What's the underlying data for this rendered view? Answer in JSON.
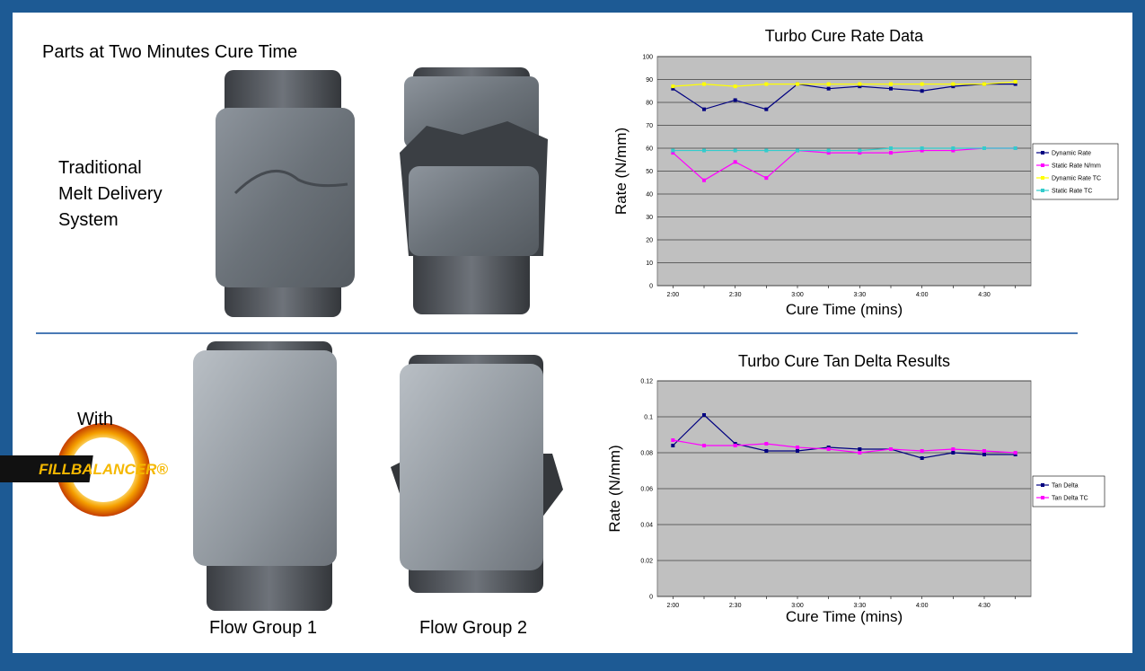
{
  "heading": "Parts at Two Minutes Cure Time",
  "traditional_label": [
    "Traditional",
    "Melt Delivery",
    "System"
  ],
  "with_label": "With",
  "logo": "FILLBALANCER®",
  "photo_captions": [
    "Flow Group 1",
    "Flow Group 2"
  ],
  "chart_data": [
    {
      "type": "line",
      "title": "Turbo Cure Rate Data",
      "x_label": "Cure Time (mins)",
      "y_label": "Rate (N/mm)",
      "categories": [
        "2:00",
        null,
        "2:30",
        null,
        "3:00",
        null,
        "3:30",
        null,
        "4:00",
        null,
        "4:30",
        null
      ],
      "series": [
        {
          "name": "Dynamic Rate",
          "color": "#000080",
          "values": [
            86,
            77,
            81,
            77,
            88,
            86,
            87,
            86,
            85,
            87,
            88,
            88
          ]
        },
        {
          "name": "Static Rate N/mm",
          "color": "#ff00ff",
          "values": [
            58,
            46,
            54,
            47,
            59,
            58,
            58,
            58,
            59,
            59,
            60,
            60
          ]
        },
        {
          "name": "Dynamic Rate TC",
          "color": "#ffff00",
          "values": [
            87,
            88,
            87,
            88,
            88,
            88,
            88,
            88,
            88,
            88,
            88,
            89
          ]
        },
        {
          "name": "Static Rate TC",
          "color": "#33cccc",
          "values": [
            59,
            59,
            59,
            59,
            59,
            59,
            59,
            60,
            60,
            60,
            60,
            60
          ]
        }
      ],
      "ylim": [
        0,
        100
      ],
      "yticks": [
        0,
        10,
        20,
        30,
        40,
        50,
        60,
        70,
        80,
        90,
        100
      ],
      "grid": true,
      "legend": "right"
    },
    {
      "type": "line",
      "title": "Turbo Cure Tan Delta Results",
      "x_label": "Cure Time (mins)",
      "y_label": "Rate (N/mm)",
      "categories": [
        "2:00",
        null,
        "2:30",
        null,
        "3:00",
        null,
        "3:30",
        null,
        "4:00",
        null,
        "4:30",
        null
      ],
      "series": [
        {
          "name": "Tan Delta",
          "color": "#000080",
          "values": [
            0.084,
            0.101,
            0.085,
            0.081,
            0.081,
            0.083,
            0.082,
            0.082,
            0.077,
            0.08,
            0.079,
            0.079
          ]
        },
        {
          "name": "Tan Delta TC",
          "color": "#ff00ff",
          "values": [
            0.087,
            0.084,
            0.084,
            0.085,
            0.083,
            0.082,
            0.08,
            0.082,
            0.081,
            0.082,
            0.081,
            0.08
          ]
        }
      ],
      "ylim": [
        0,
        0.12
      ],
      "yticks": [
        0,
        0.02,
        0.04,
        0.06,
        0.08,
        0.1,
        0.12
      ],
      "grid": true,
      "legend": "right"
    }
  ]
}
